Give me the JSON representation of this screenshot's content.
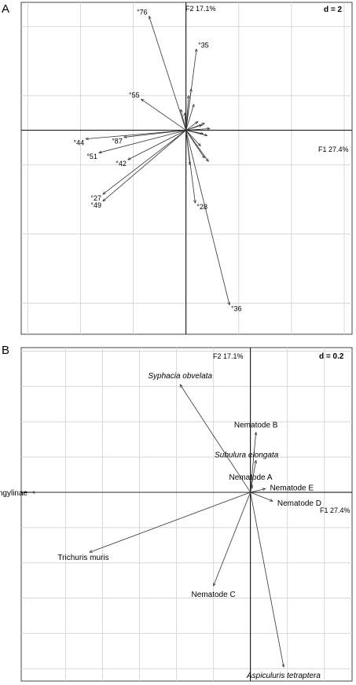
{
  "figure": {
    "panels": [
      {
        "letter": "A",
        "x_axis_label": "F1 27.4%",
        "y_axis_label": "F2 17.1%",
        "scale_label": "d = 2"
      },
      {
        "letter": "B",
        "x_axis_label": "F1 27.4%",
        "y_axis_label": "F2 17.1%",
        "scale_label": "d = 0.2"
      }
    ]
  },
  "chart_data": [
    {
      "type": "scatter",
      "subtype": "biplot-arrows",
      "xlabel": "F1 27.4%",
      "ylabel": "F2 17.1%",
      "scale": "d = 2",
      "grid": true,
      "xlim": [
        -12.5,
        12.6
      ],
      "ylim": [
        -11.8,
        7.4
      ],
      "labeled_points": [
        {
          "label": "76",
          "x": -2.8,
          "y": 6.6
        },
        {
          "label": "35",
          "x": 0.8,
          "y": 4.7
        },
        {
          "label": "55",
          "x": -3.4,
          "y": 1.8
        },
        {
          "label": "87",
          "x": -4.7,
          "y": -0.4
        },
        {
          "label": "44",
          "x": -7.6,
          "y": -0.5
        },
        {
          "label": "51",
          "x": -6.6,
          "y": -1.3
        },
        {
          "label": "42",
          "x": -4.4,
          "y": -1.7
        },
        {
          "label": "27",
          "x": -6.3,
          "y": -3.7
        },
        {
          "label": "49",
          "x": -6.3,
          "y": -4.1
        },
        {
          "label": "28",
          "x": 0.7,
          "y": -4.2
        },
        {
          "label": "36",
          "x": 3.3,
          "y": -10.1
        }
      ],
      "unlabeled_points": [
        {
          "x": 0.4,
          "y": 2.4
        },
        {
          "x": 0.2,
          "y": 2.0
        },
        {
          "x": -0.4,
          "y": 1.2
        },
        {
          "x": 0.6,
          "y": 1.5
        },
        {
          "x": -0.1,
          "y": 1.0
        },
        {
          "x": 0.9,
          "y": 0.5
        },
        {
          "x": 1.2,
          "y": 0.3
        },
        {
          "x": 1.4,
          "y": 0.4
        },
        {
          "x": 1.8,
          "y": 0.1
        },
        {
          "x": 1.3,
          "y": -0.2
        },
        {
          "x": 1.6,
          "y": -0.3
        },
        {
          "x": 1.1,
          "y": -0.9
        },
        {
          "x": 1.4,
          "y": -1.6
        },
        {
          "x": 1.7,
          "y": -1.8
        },
        {
          "x": 0.3,
          "y": -2.0
        }
      ]
    },
    {
      "type": "scatter",
      "subtype": "biplot-arrows",
      "xlabel": "F1 27.4%",
      "ylabel": "F2 17.1%",
      "scale": "d = 0.2",
      "grid": true,
      "xlim": [
        -1.24,
        0.55
      ],
      "ylim": [
        -1.07,
        0.82
      ],
      "vectors": [
        {
          "label": "Syphacia obvelata",
          "italic": true,
          "x": -0.38,
          "y": 0.61
        },
        {
          "label": "Nematode B",
          "italic": false,
          "x": 0.03,
          "y": 0.34
        },
        {
          "label": "Subulura elongata",
          "italic": true,
          "x": 0.03,
          "y": 0.18
        },
        {
          "label": "Nematode A",
          "italic": false,
          "x": 0.01,
          "y": 0.04
        },
        {
          "label": "Nematode E",
          "italic": false,
          "x": 0.08,
          "y": 0.02
        },
        {
          "label": "Nematode D",
          "italic": false,
          "x": 0.12,
          "y": -0.05
        },
        {
          "label": "Nippostrongylinae",
          "italic": false,
          "x": -1.18,
          "y": 0.0
        },
        {
          "label": "Trichuris muris",
          "italic": false,
          "x": -0.87,
          "y": -0.34
        },
        {
          "label": "Nematode C",
          "italic": false,
          "x": -0.2,
          "y": -0.53
        },
        {
          "label": "Aspiculuris tetraptera",
          "italic": true,
          "x": 0.18,
          "y": -0.99
        }
      ]
    }
  ]
}
